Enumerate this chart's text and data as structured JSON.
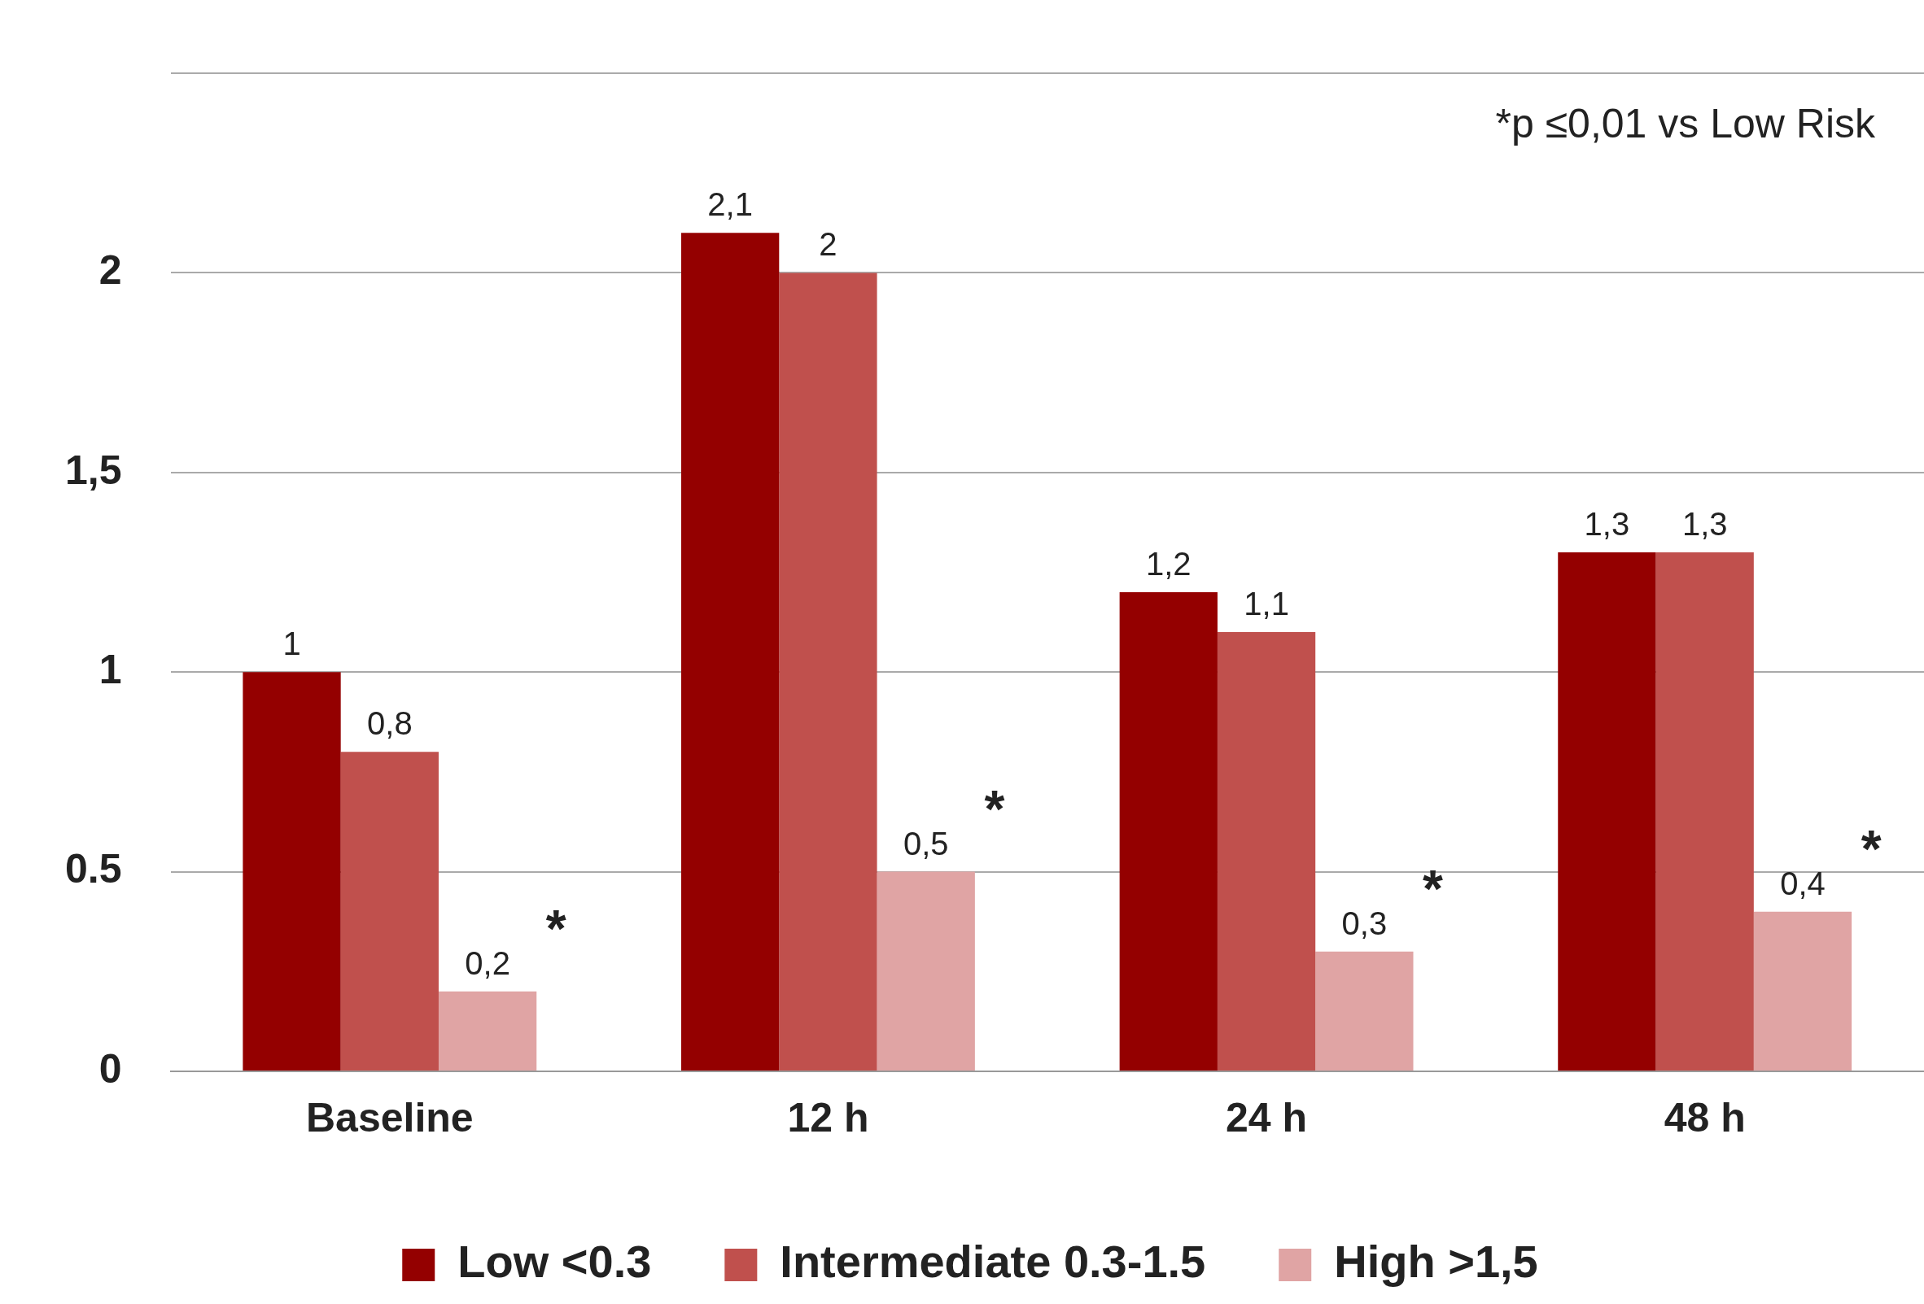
{
  "chart_data": {
    "type": "bar",
    "categories": [
      "Baseline",
      "12 h",
      "24 h",
      "48 h"
    ],
    "series": [
      {
        "name": "Low <0.3",
        "color": "#940000",
        "values": [
          1,
          2.1,
          1.2,
          1.3
        ],
        "value_labels": [
          "1",
          "2,1",
          "1,2",
          "1,3"
        ]
      },
      {
        "name": "Intermediate 0.3-1.5",
        "color": "#c0504d",
        "values": [
          0.8,
          2,
          1.1,
          1.3
        ],
        "value_labels": [
          "0,8",
          "2",
          "1,1",
          "1,3"
        ]
      },
      {
        "name": "High >1,5",
        "color": "#e0a4a4",
        "values": [
          0.2,
          0.5,
          0.3,
          0.4
        ],
        "value_labels": [
          "0,2",
          "0,5",
          "0,3",
          "0,4"
        ]
      }
    ],
    "ylim": [
      0,
      2.5
    ],
    "yticks": [
      0,
      0.5,
      1,
      {
        "value": 1.5,
        "label": "1,5"
      },
      2,
      {
        "value": 2.5,
        "label": null
      }
    ],
    "grid": "y",
    "legend": "bottom",
    "annotations": [
      "*p ≤0,01 vs Low Risk",
      "*",
      "*",
      "*",
      "*"
    ]
  }
}
